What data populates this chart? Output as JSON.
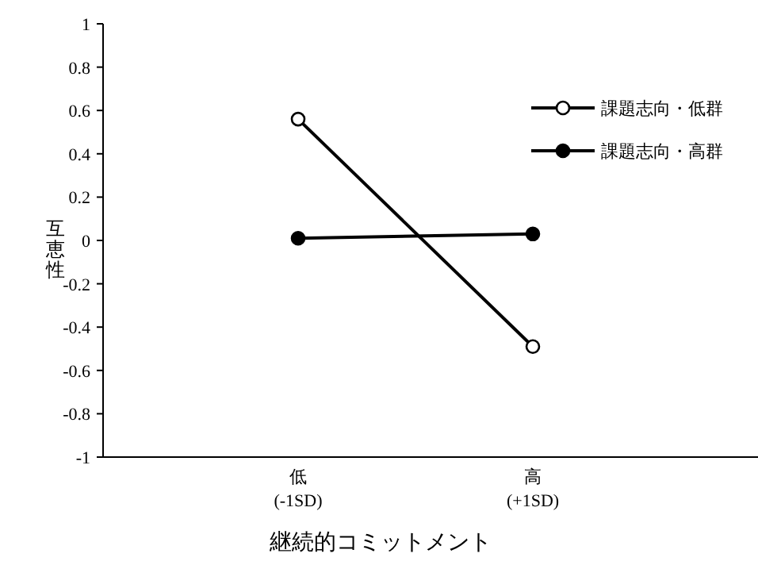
{
  "chart_data": {
    "type": "line",
    "xlabel": "継続的コミットメント",
    "ylabel": "互恵性",
    "categories": [
      "低\n(-1SD)",
      "高\n(+1SD)"
    ],
    "series": [
      {
        "name": "課題志向・低群",
        "color": "#000000",
        "values": [
          0.56,
          -0.49
        ]
      },
      {
        "name": "課題志向・高群",
        "color": "#000000",
        "values": [
          0.01,
          0.03
        ]
      }
    ],
    "ylim": [
      -1,
      1
    ],
    "yticks": [
      -1,
      -0.8,
      -0.6,
      -0.4,
      -0.2,
      0,
      0.2,
      0.4,
      0.6,
      0.8,
      1
    ],
    "marker": "circle",
    "line_style": "solid",
    "legend": "top right",
    "grid": false
  }
}
